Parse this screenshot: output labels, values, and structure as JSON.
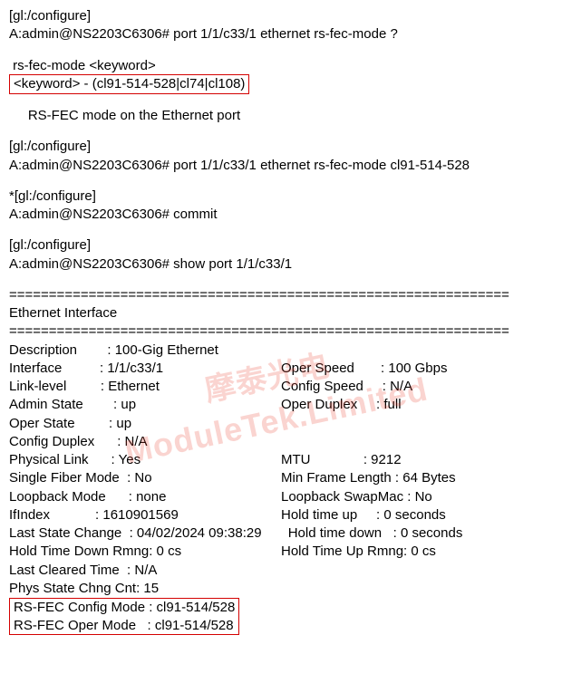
{
  "watermark": {
    "line1": "摩泰光电",
    "line2": "ModuleTek.Limited"
  },
  "highlight_color": "#d40000",
  "block1": {
    "ctx": "[gl:/configure]",
    "prompt": "A:admin@NS2203C6306# port 1/1/c33/1 ethernet rs-fec-mode ?"
  },
  "help": {
    "line1": " rs-fec-mode <keyword>",
    "keyword_box": " <keyword> - (cl91-514-528|cl74|cl108)",
    "desc": "     RS-FEC mode on the Ethernet port"
  },
  "block2": {
    "ctx": "[gl:/configure]",
    "prompt": "A:admin@NS2203C6306# port 1/1/c33/1 ethernet rs-fec-mode cl91-514-528"
  },
  "block3": {
    "ctx": "*[gl:/configure]",
    "prompt": "A:admin@NS2203C6306# commit"
  },
  "block4": {
    "ctx": "[gl:/configure]",
    "prompt": "A:admin@NS2203C6306# show port 1/1/c33/1"
  },
  "separator": "===============================================================",
  "section_title": "Ethernet Interface",
  "fields": {
    "description": "Description        : 100-Gig Ethernet",
    "interface_l": "Interface          : 1/1/c33/1",
    "interface_r": "Oper Speed       : 100 Gbps",
    "link_l": "Link-level         : Ethernet",
    "link_r": "Config Speed     : N/A",
    "admin_l": "Admin State        : up",
    "admin_r": "Oper Duplex     : full",
    "oper_state": "Oper State         : up",
    "cfg_duplex": "Config Duplex      : N/A",
    "phys_l": "Physical Link      : Yes",
    "phys_r": "MTU              : 9212",
    "fiber_l": "Single Fiber Mode  : No",
    "fiber_r": "Min Frame Length : 64 Bytes",
    "loop_l": "Loopback Mode      : none",
    "loop_r": "Loopback SwapMac : No",
    "ifidx_l": "IfIndex            : 1610901569",
    "ifidx_r": "Hold time up     : 0 seconds",
    "last_change": "Last State Change  : 04/02/2024 09:38:29       Hold time down   : 0 seconds",
    "hold_l": "Hold Time Down Rmng: 0 cs",
    "hold_r": "Hold Time Up Rmng: 0 cs",
    "cleared": "Last Cleared Time  : N/A",
    "phys_chng": "Phys State Chng Cnt: 15",
    "rsfec_cfg": "RS-FEC Config Mode : cl91-514/528",
    "rsfec_oper": "RS-FEC Oper Mode   : cl91-514/528"
  }
}
